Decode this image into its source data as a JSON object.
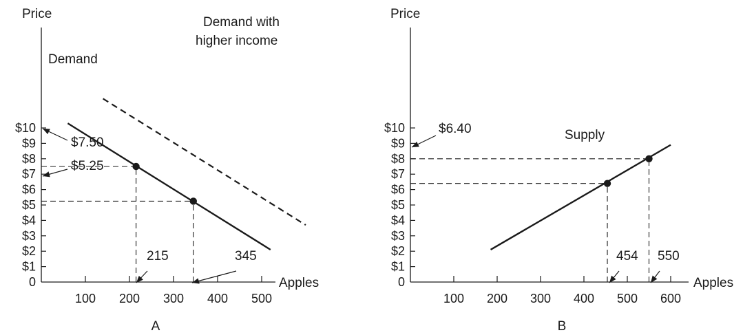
{
  "chart_data": [
    {
      "type": "line",
      "panel_label": "A",
      "xlabel": "Apples",
      "ylabel": "Price",
      "xlim": [
        0,
        520
      ],
      "ylim": [
        0,
        10
      ],
      "x_ticks": [
        0,
        100,
        200,
        300,
        400,
        500
      ],
      "x_tick_labels": [
        "",
        "100",
        "200",
        "300",
        "400",
        "500"
      ],
      "y_ticks": [
        0,
        1,
        2,
        3,
        4,
        5,
        6,
        7,
        8,
        9,
        10
      ],
      "y_tick_labels": [
        "0",
        "$1",
        "$2",
        "$3",
        "$4",
        "$5",
        "$6",
        "$7",
        "$8",
        "$9",
        "$10"
      ],
      "grid": false,
      "series": [
        {
          "name": "Demand",
          "style": "solid",
          "x": [
            60,
            520
          ],
          "y": [
            10.3,
            2.1
          ]
        },
        {
          "name": "Demand with higher income",
          "style": "dashed",
          "x": [
            140,
            600
          ],
          "y": [
            11.9,
            3.7
          ]
        }
      ],
      "points": [
        {
          "x": 215,
          "y": 7.5,
          "x_label": "215",
          "y_label": "$7.50"
        },
        {
          "x": 345,
          "y": 5.25,
          "x_label": "345",
          "y_label": "$5.25"
        }
      ]
    },
    {
      "type": "line",
      "panel_label": "B",
      "xlabel": "Apples",
      "ylabel": "Price",
      "xlim": [
        0,
        620
      ],
      "ylim": [
        0,
        10
      ],
      "x_ticks": [
        0,
        100,
        200,
        300,
        400,
        500,
        600
      ],
      "x_tick_labels": [
        "",
        "100",
        "200",
        "300",
        "400",
        "500",
        "600"
      ],
      "y_ticks": [
        0,
        1,
        2,
        3,
        4,
        5,
        6,
        7,
        8,
        9,
        10
      ],
      "y_tick_labels": [
        "0",
        "$1",
        "$2",
        "$3",
        "$4",
        "$5",
        "$6",
        "$7",
        "$8",
        "$9",
        "$10"
      ],
      "grid": false,
      "series": [
        {
          "name": "Supply",
          "style": "solid",
          "x": [
            185,
            600
          ],
          "y": [
            2.1,
            8.9
          ]
        }
      ],
      "points": [
        {
          "x": 454,
          "y": 6.4,
          "x_label": "454",
          "y_label": "$6.40"
        },
        {
          "x": 550,
          "y": 8.0,
          "x_label": "550",
          "y_label": ""
        }
      ]
    }
  ]
}
